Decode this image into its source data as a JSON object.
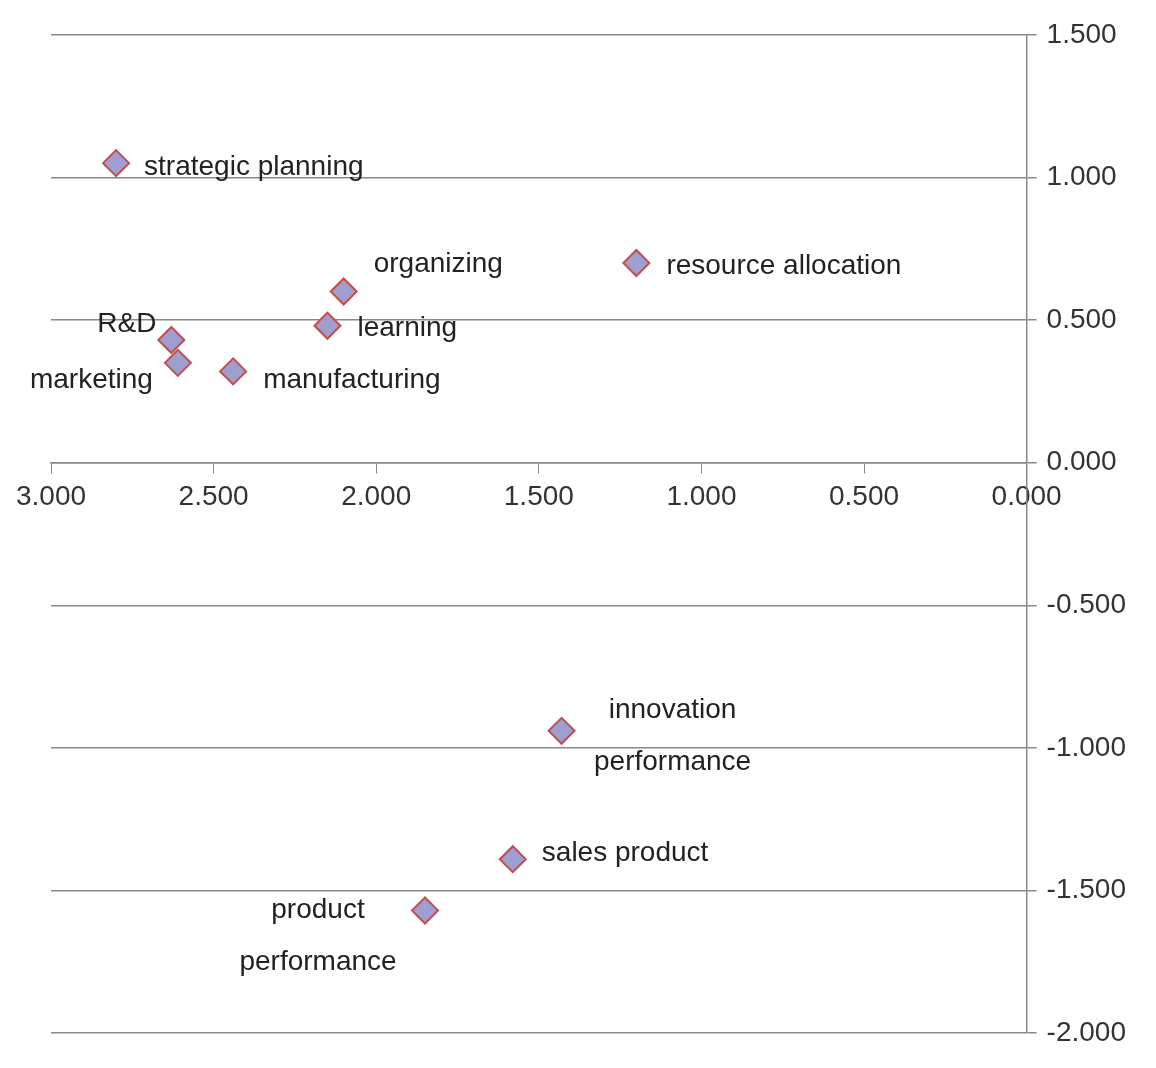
{
  "chart_data": {
    "type": "scatter",
    "marker": "diamond",
    "grid": "y",
    "legend": false,
    "series": [
      {
        "color": "#9e9ed0",
        "x": [
          2.8,
          2.1,
          1.2,
          2.63,
          2.15,
          2.61,
          2.44,
          1.43,
          1.58,
          1.85
        ],
        "values": [
          1.05,
          0.6,
          0.7,
          0.43,
          0.48,
          0.35,
          0.32,
          -0.94,
          -1.39,
          -1.57
        ]
      }
    ],
    "xlim": [
      3,
      0
    ],
    "xticks": [
      {
        "value": 3,
        "label": "3.000"
      },
      {
        "value": 2.5,
        "label": "2.500"
      },
      {
        "value": 2,
        "label": "2.000"
      },
      {
        "value": 1.5,
        "label": "1.500"
      },
      {
        "value": 1,
        "label": "1.000"
      },
      {
        "value": 0.5,
        "label": "0.500"
      },
      {
        "value": 0,
        "label": "0.000"
      }
    ],
    "ylim": [
      -2,
      1.5
    ],
    "yticks": [
      {
        "value": 1.5,
        "label": "1.500"
      },
      {
        "value": 1,
        "label": "1.000"
      },
      {
        "value": 0.5,
        "label": "0.500"
      },
      {
        "value": 0,
        "label": "0.000"
      },
      {
        "value": -0.5,
        "label": "-0.500"
      },
      {
        "value": -1,
        "label": "-1.000"
      },
      {
        "value": -1.5,
        "label": "-1.500"
      },
      {
        "value": -2,
        "label": "-2.000"
      }
    ],
    "annotations": [
      {
        "text": "strategic planning",
        "x": 2.8,
        "y": 1.05
      },
      {
        "text": "organizing",
        "x": 2.1,
        "y": 0.6
      },
      {
        "text": "resource allocation",
        "x": 1.2,
        "y": 0.7
      },
      {
        "text": "R&D",
        "x": 2.63,
        "y": 0.43
      },
      {
        "text": "learning",
        "x": 2.15,
        "y": 0.48
      },
      {
        "text": "marketing",
        "x": 2.61,
        "y": 0.35
      },
      {
        "text": "manufacturing",
        "x": 2.44,
        "y": 0.32
      },
      {
        "text": "innovation performance",
        "x": 1.43,
        "y": -0.94
      },
      {
        "text": "sales product",
        "x": 1.58,
        "y": -1.39
      },
      {
        "text": "product performance",
        "x": 1.85,
        "y": -1.57
      }
    ]
  }
}
